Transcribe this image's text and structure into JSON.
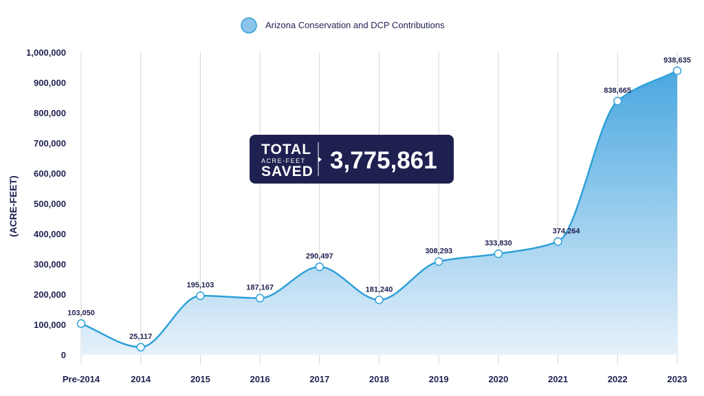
{
  "chart_data": {
    "type": "area",
    "categories": [
      "Pre-2014",
      "2014",
      "2015",
      "2016",
      "2017",
      "2018",
      "2019",
      "2020",
      "2021",
      "2022",
      "2023"
    ],
    "series": [
      {
        "name": "Arizona Conservation and DCP Contributions",
        "values": [
          103050,
          25117,
          195103,
          187167,
          290497,
          181240,
          308293,
          333830,
          374264,
          838665,
          938635
        ],
        "labels": [
          "103,050",
          "25,117",
          "195,103",
          "187,167",
          "290,497",
          "181,240",
          "308,293",
          "333,830",
          "374,264",
          "838,665",
          "938,635"
        ]
      }
    ],
    "ylabel": "(ACRE-FEET)",
    "xlabel": "",
    "ylim": [
      0,
      1000000
    ],
    "yticks": [
      0,
      100000,
      200000,
      300000,
      400000,
      500000,
      600000,
      700000,
      800000,
      900000,
      1000000
    ],
    "ytick_labels": [
      "0",
      "100,000",
      "200,000",
      "300,000",
      "400,000",
      "500,000",
      "600,000",
      "700,000",
      "800,000",
      "900,000",
      "1,000,000"
    ],
    "grid": "vertical",
    "legend_position": "top-center",
    "colors": {
      "line": "#2ea0d8",
      "fill_top": "#4aa8e0",
      "fill_bottom": "#e6f1fb",
      "legend_swatch": "#8cc4ec",
      "text": "#1e2150",
      "callout_bg": "#1e2150",
      "grid": "#d4d4d4"
    }
  },
  "callout": {
    "line1": "TOTAL",
    "line2": "ACRE-FEET",
    "line3": "SAVED",
    "value": "3,775,861"
  }
}
